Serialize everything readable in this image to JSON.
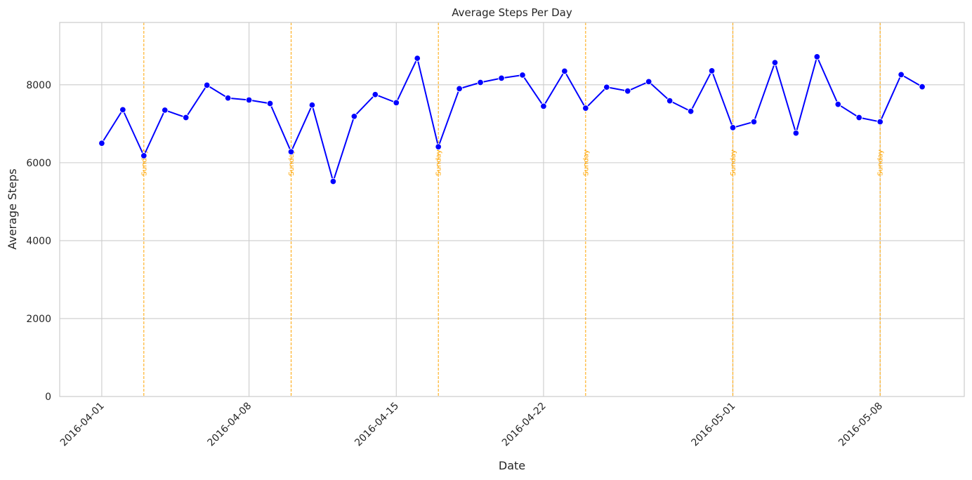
{
  "chart_data": {
    "type": "line",
    "title": "Average Steps Per Day",
    "xlabel": "Date",
    "ylabel": "Average Steps",
    "ylim": [
      0,
      9600
    ],
    "yticks": [
      0,
      2000,
      4000,
      6000,
      8000
    ],
    "start_date": "2016-04-01",
    "xlim_days": [
      -2,
      41
    ],
    "xtick_dates": [
      "2016-04-01",
      "2016-04-08",
      "2016-04-15",
      "2016-04-22",
      "2016-05-01",
      "2016-05-08"
    ],
    "xtick_day_index": [
      0,
      7,
      14,
      21,
      30,
      37
    ],
    "series": [
      {
        "name": "Average Steps",
        "color": "#0000ff",
        "values": [
          6500,
          7360,
          6180,
          7350,
          7160,
          7990,
          7660,
          7610,
          7520,
          6280,
          7480,
          5520,
          7190,
          7750,
          7540,
          8680,
          6410,
          7900,
          8060,
          8170,
          8250,
          7450,
          8350,
          7400,
          7940,
          7840,
          8080,
          7590,
          7320,
          8360,
          6900,
          7050,
          8570,
          6760,
          8720,
          7500,
          7160,
          7050,
          8260,
          7950
        ]
      }
    ],
    "annotations": {
      "label": "Sunday",
      "color": "#ffa500",
      "day_index": [
        2,
        9,
        16,
        23,
        30,
        37
      ]
    }
  }
}
